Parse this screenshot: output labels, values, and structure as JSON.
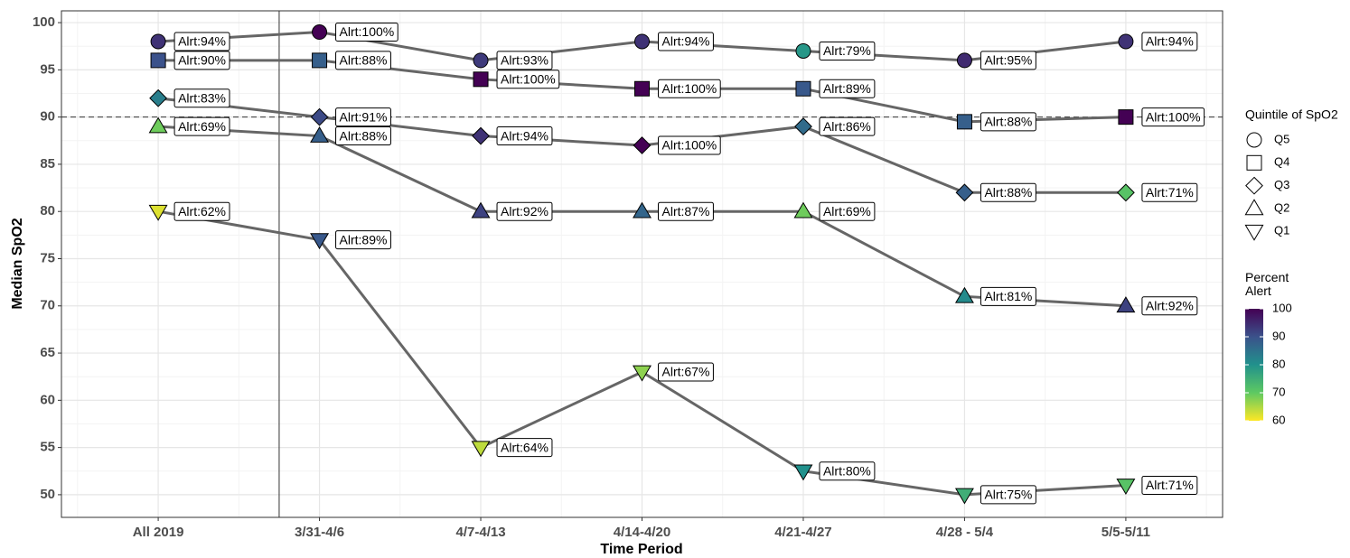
{
  "chart_data": {
    "type": "line",
    "x_label": "Time Period",
    "y_label": "Median SpO2",
    "categories": [
      "All 2019",
      "3/31-4/6",
      "4/7-4/13",
      "4/14-4/20",
      "4/21-4/27",
      "4/28 - 5/4",
      "5/5-5/11"
    ],
    "ylim": [
      47.6,
      101.25
    ],
    "yticks": [
      50,
      55,
      60,
      65,
      70,
      75,
      80,
      85,
      90,
      95,
      100
    ],
    "grid": true,
    "hline": 90,
    "vline": 0.75,
    "line_color": "#666666",
    "legend_title": "Quintile of SpO2",
    "series": [
      {
        "name": "Q5",
        "shape": "circle",
        "values": [
          98,
          99,
          96,
          98,
          97,
          96,
          98
        ],
        "alert": [
          94,
          100,
          93,
          94,
          79,
          95,
          94
        ],
        "value_labels": [
          "Alrt:94%",
          "Alrt:100%",
          "Alrt:93%",
          "Alrt:94%",
          "Alrt:79%",
          "Alrt:95%",
          "Alrt:94%"
        ]
      },
      {
        "name": "Q4",
        "shape": "square",
        "values": [
          96,
          96,
          94,
          93,
          93,
          89.5,
          90
        ],
        "alert": [
          90,
          88,
          100,
          100,
          89,
          88,
          100
        ],
        "value_labels": [
          "Alrt:90%",
          "Alrt:88%",
          "Alrt:100%",
          "Alrt:100%",
          "Alrt:89%",
          "Alrt:88%",
          "Alrt:100%"
        ]
      },
      {
        "name": "Q3",
        "shape": "diamond",
        "values": [
          92,
          90,
          88,
          87,
          89,
          82,
          82
        ],
        "alert": [
          83,
          91,
          94,
          100,
          86,
          88,
          71
        ],
        "value_labels": [
          "Alrt:83%",
          "Alrt:91%",
          "Alrt:94%",
          "Alrt:100%",
          "Alrt:86%",
          "Alrt:88%",
          "Alrt:71%"
        ]
      },
      {
        "name": "Q2",
        "shape": "triangle-up",
        "values": [
          89,
          88,
          80,
          80,
          80,
          71,
          70
        ],
        "alert": [
          69,
          88,
          92,
          87,
          69,
          81,
          92
        ],
        "value_labels": [
          "Alrt:69%",
          "Alrt:88%",
          "Alrt:92%",
          "Alrt:87%",
          "Alrt:69%",
          "Alrt:81%",
          "Alrt:92%"
        ]
      },
      {
        "name": "Q1",
        "shape": "triangle-down",
        "values": [
          80,
          77,
          55,
          63,
          52.5,
          50,
          51
        ],
        "alert": [
          62,
          89,
          64,
          67,
          80,
          75,
          71
        ],
        "value_labels": [
          "Alrt:62%",
          "Alrt:89%",
          "Alrt:64%",
          "Alrt:67%",
          "Alrt:80%",
          "Alrt:75%",
          "Alrt:71%"
        ]
      }
    ],
    "colorbar": {
      "title": "Percent Alert",
      "lim": [
        60,
        100
      ],
      "ticks": [
        60,
        70,
        80,
        90,
        100
      ],
      "colors": [
        "#fde725",
        "#5ec962",
        "#21918c",
        "#3b528b",
        "#440154"
      ]
    }
  }
}
